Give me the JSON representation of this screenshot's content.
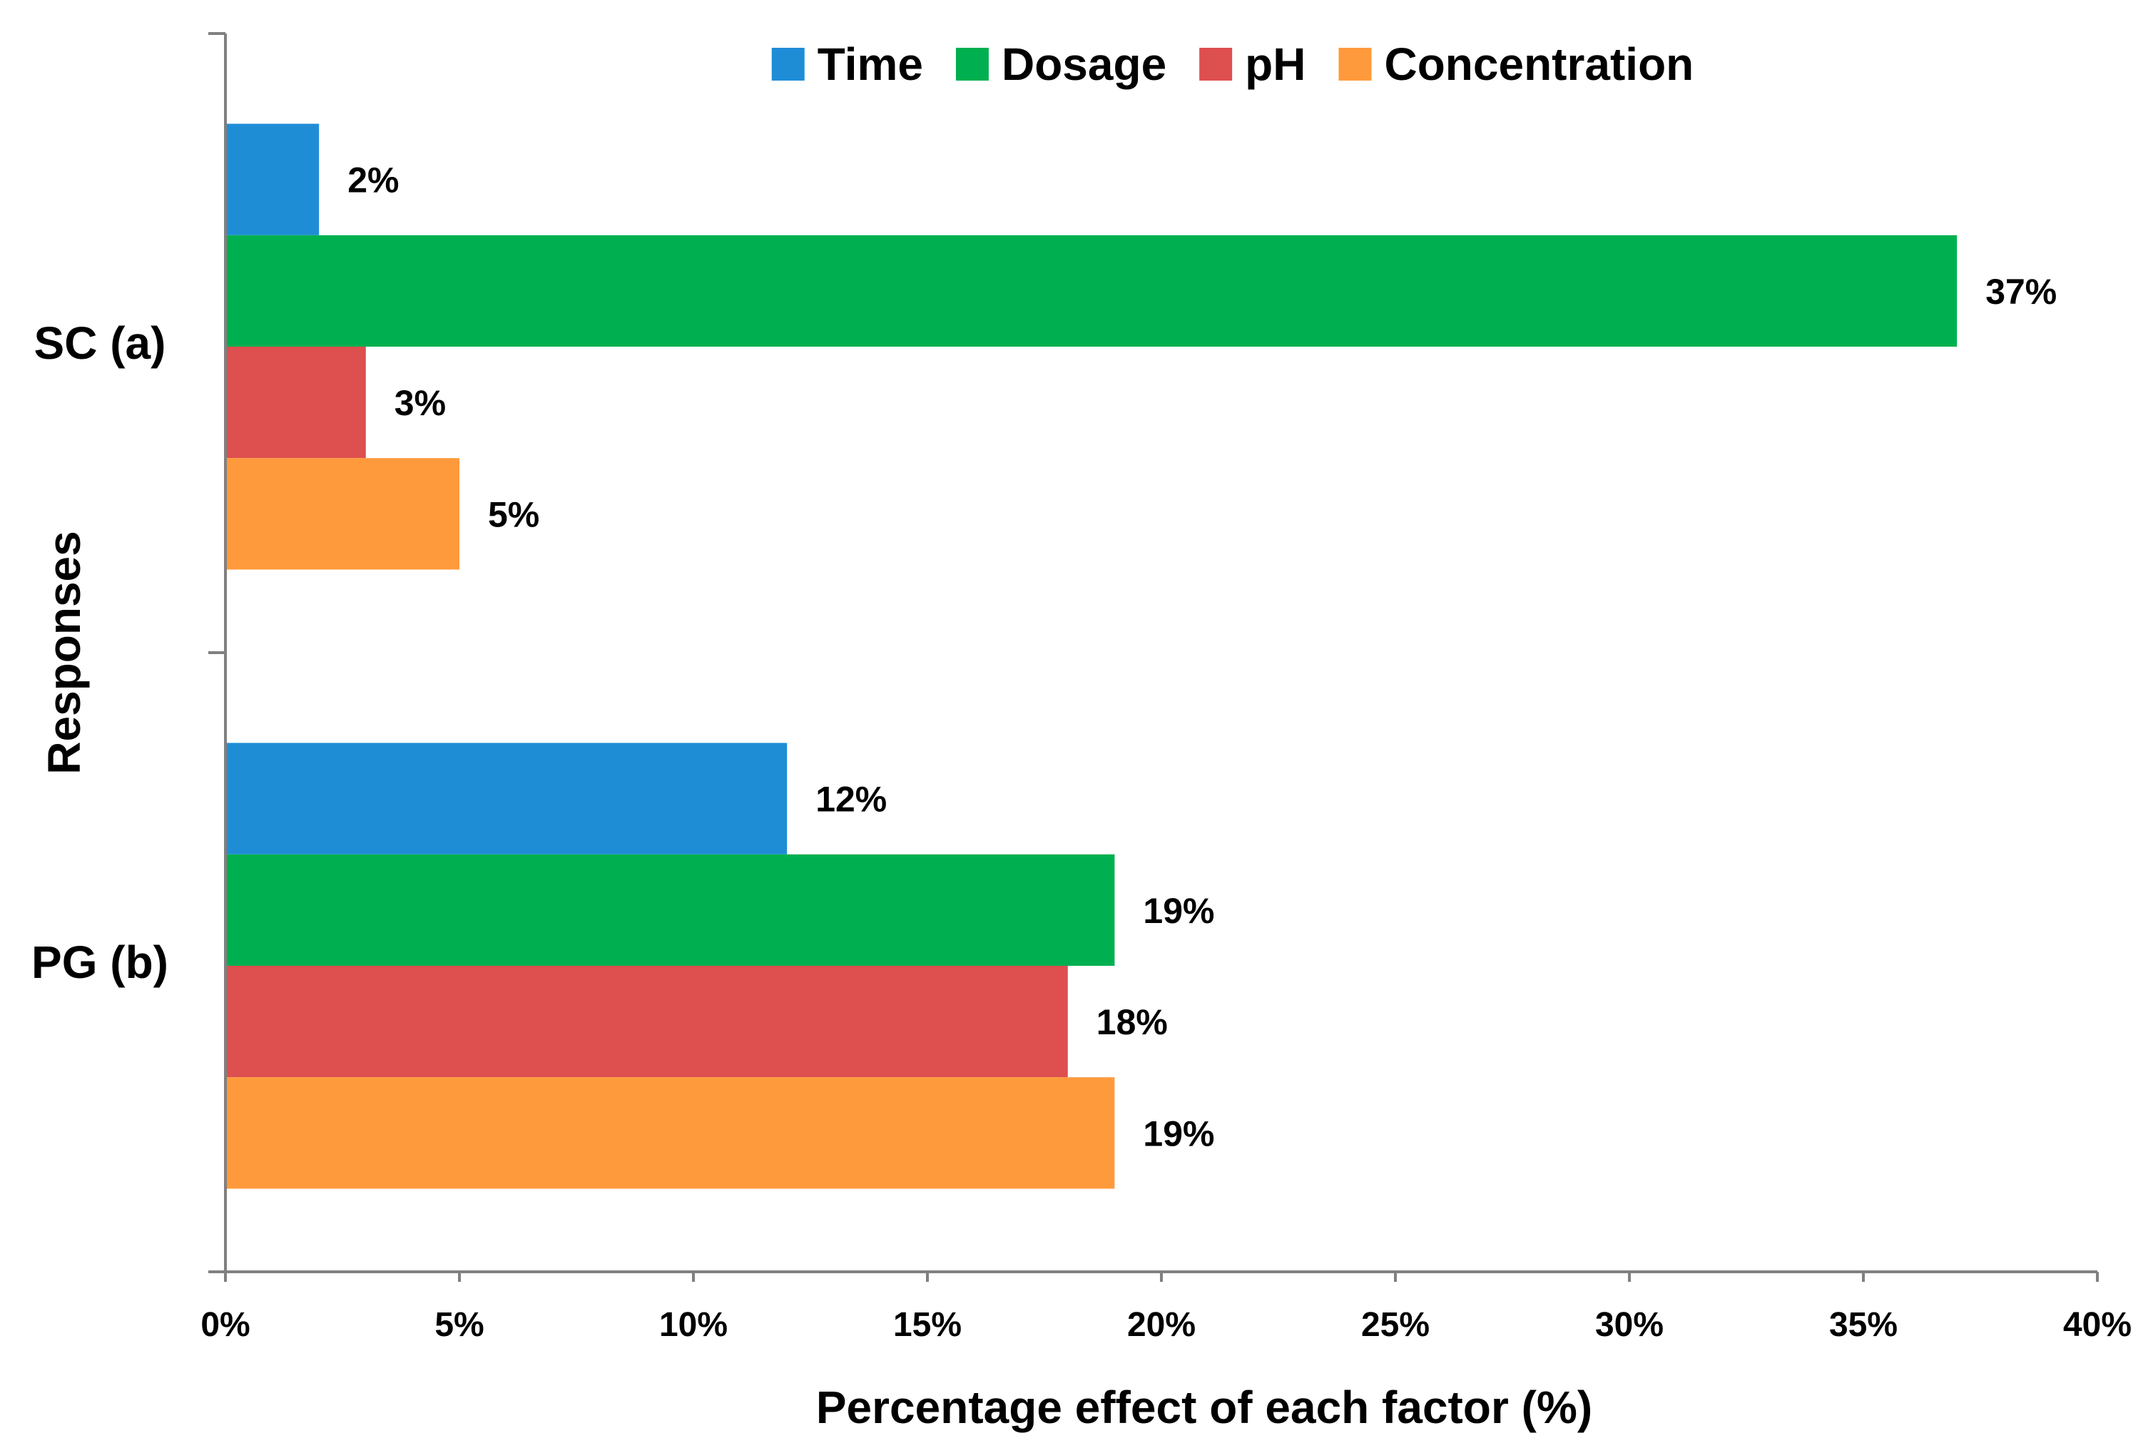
{
  "chart_data": {
    "type": "bar",
    "orientation": "horizontal",
    "categories": [
      "SC (a)",
      "PG (b)"
    ],
    "series": [
      {
        "name": "Time",
        "color": "#1F8DD6",
        "values": [
          2,
          12
        ]
      },
      {
        "name": "Dosage",
        "color": "#00B050",
        "values": [
          37,
          19
        ]
      },
      {
        "name": "pH",
        "color": "#DE4F4F",
        "values": [
          3,
          18
        ]
      },
      {
        "name": "Concentration",
        "color": "#FF9A3C",
        "values": [
          5,
          19
        ]
      }
    ],
    "data_labels": [
      [
        "2%",
        "37%",
        "3%",
        "5%"
      ],
      [
        "12%",
        "19%",
        "18%",
        "19%"
      ]
    ],
    "xlim": [
      0,
      40
    ],
    "xticks": [
      0,
      5,
      10,
      15,
      20,
      25,
      30,
      35,
      40
    ],
    "xtick_labels": [
      "0%",
      "5%",
      "10%",
      "15%",
      "20%",
      "25%",
      "30%",
      "35%",
      "40%"
    ],
    "xlabel": "Percentage effect of each factor (%)",
    "ylabel": "Responses",
    "title": "",
    "legend_position": "top",
    "grid": false
  }
}
